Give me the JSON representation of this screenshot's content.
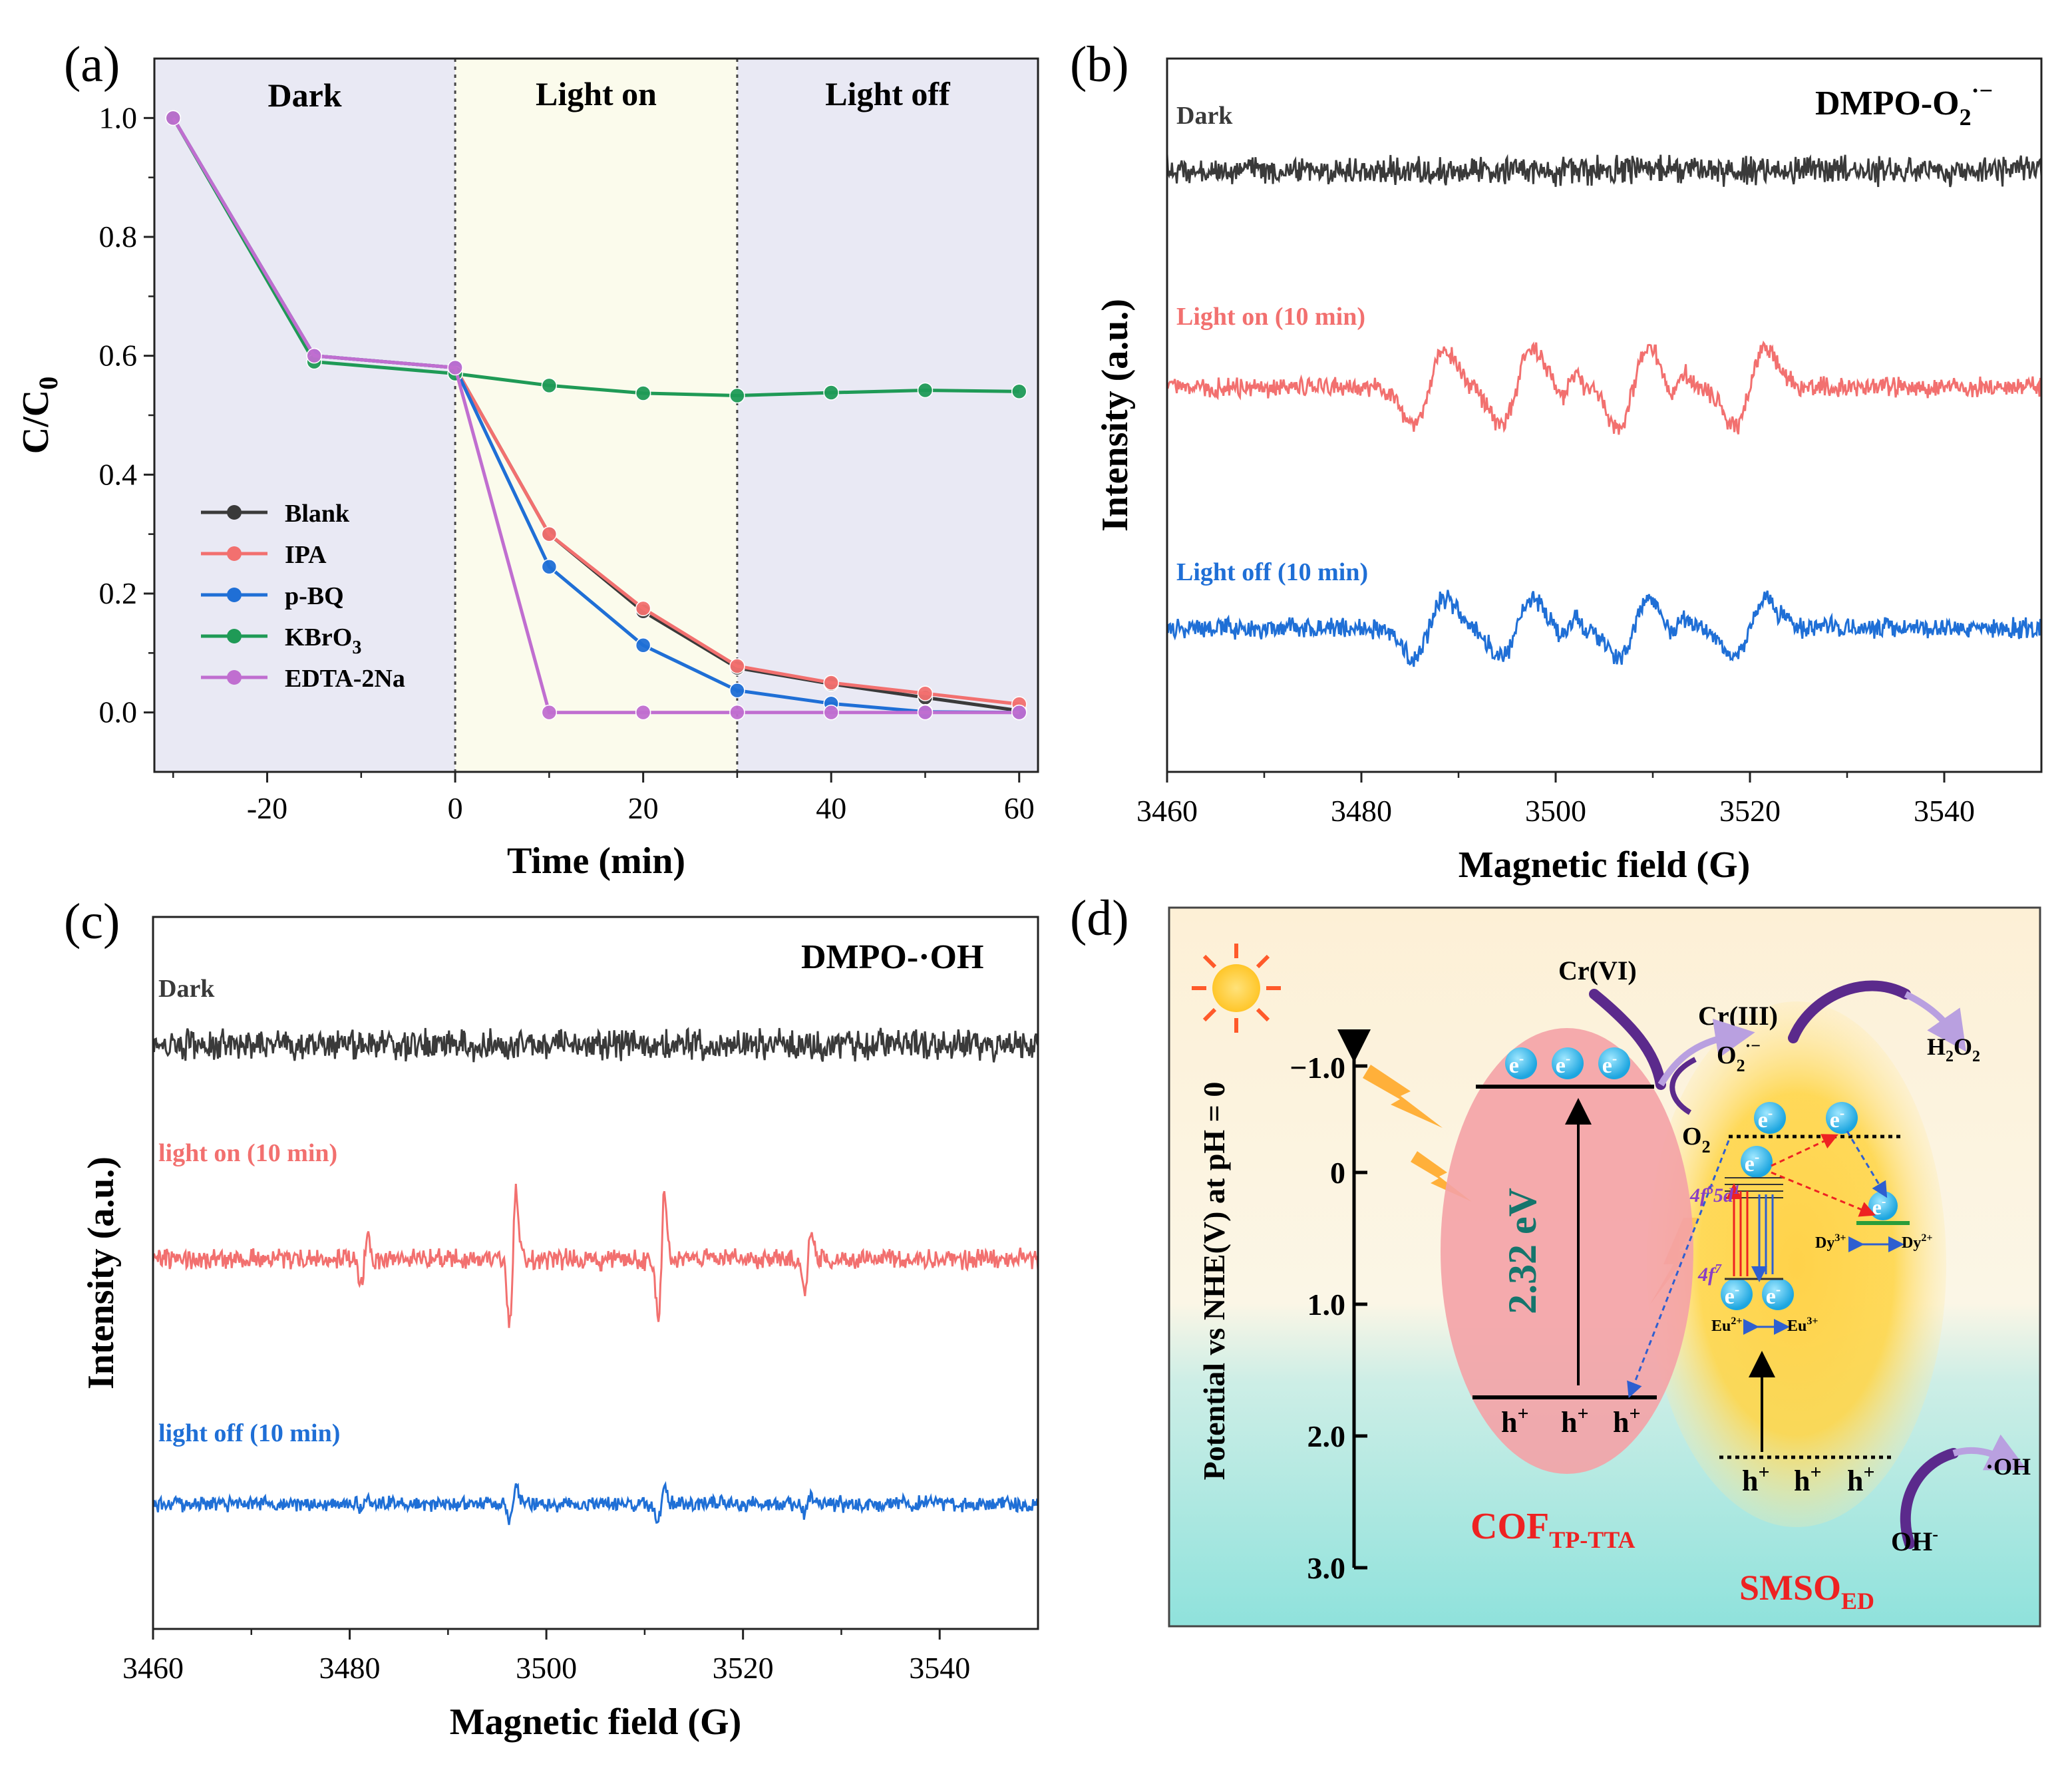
{
  "colors": {
    "black": "#3a3a3a",
    "red": "#f2706f",
    "blue": "#1f6fd6",
    "green": "#1f9a56",
    "purple": "#c06ed0",
    "dark_bg": "#e9e9f4",
    "light_bg": "#fbfbec",
    "accent_red": "#ee2222",
    "teal": "#15756c"
  },
  "panels": {
    "a": {
      "label": "(a)",
      "regions": [
        "Dark",
        "Light on",
        "Light off"
      ]
    },
    "b": {
      "label": "(b)",
      "title": "DMPO-O",
      "title_sub": "2",
      "title_sup": "·−",
      "traces": [
        "Dark",
        "Light on (10 min)",
        "Light off (10 min)"
      ]
    },
    "c": {
      "label": "(c)",
      "title": "DMPO-·OH",
      "traces": [
        "Dark",
        "light on (10 min)",
        "light off (10 min)"
      ]
    },
    "d": {
      "label": "(d)",
      "ylabel": "Potential vs NHE(V) at pH = 0",
      "yticks": [
        "−1.0",
        "0",
        "1.0",
        "2.0",
        "3.0"
      ],
      "electron": "e",
      "electron_sup": "-",
      "hole": "h",
      "hole_sup": "+",
      "bandgap": "2.32 eV",
      "cr6": "Cr(VI)",
      "cr3": "Cr(III)",
      "o2": "O",
      "o2_sub": "2",
      "o2rad": "O",
      "o2rad_sub": "2",
      "o2rad_sup": "·−",
      "h2o2": "H",
      "h2o2_sub1": "2",
      "h2o2_mid": "O",
      "h2o2_sub2": "2",
      "oh_rad": "·OH",
      "oh_minus": "OH",
      "oh_minus_sup": "-",
      "cof": "COF",
      "cof_sub": "TP-TTA",
      "smso": "SMSO",
      "smso_sub": "ED",
      "f6d": "4f",
      "f6d_sup": "6",
      "f6d_rest": "5d",
      "f6d_sup2": "1",
      "f7": "4f",
      "f7_sup": "7",
      "dy3": "Dy",
      "dy3_sup": "3+",
      "dy2": "Dy",
      "dy2_sup": "2+",
      "eu2": "Eu",
      "eu2_sup": "2+",
      "eu3": "Eu",
      "eu3_sup": "3+"
    }
  },
  "chart_data": [
    {
      "panel": "a",
      "type": "line",
      "xlabel": "Time (min)",
      "ylabel": "C/C",
      "ylabel_sub": "0",
      "xlim": [
        -32,
        62
      ],
      "ylim": [
        -0.1,
        1.1
      ],
      "xticks": [
        -20,
        0,
        20,
        40,
        60
      ],
      "xtick_labels": [
        "-20",
        "0",
        "20",
        "40",
        "60"
      ],
      "yticks": [
        0.0,
        0.2,
        0.4,
        0.6,
        0.8,
        1.0
      ],
      "ytick_labels": [
        "0.0",
        "0.2",
        "0.4",
        "0.6",
        "0.8",
        "1.0"
      ],
      "legend_position": "bottom-left",
      "x": [
        -30,
        -15,
        0,
        10,
        20,
        30,
        40,
        50,
        60
      ],
      "series": [
        {
          "name": "Blank",
          "legend": "Blank",
          "legend_sub": "",
          "color": "#3a3a3a",
          "values": [
            1.0,
            0.6,
            0.58,
            0.3,
            0.17,
            0.075,
            0.048,
            0.025,
            0.003
          ]
        },
        {
          "name": "IPA",
          "legend": "IPA",
          "legend_sub": "",
          "color": "#f2706f",
          "values": [
            1.0,
            0.6,
            0.58,
            0.3,
            0.175,
            0.078,
            0.05,
            0.032,
            0.014
          ]
        },
        {
          "name": "p-BQ",
          "legend": "p-BQ",
          "legend_sub": "",
          "color": "#1f6fd6",
          "values": [
            1.0,
            0.6,
            0.58,
            0.245,
            0.113,
            0.037,
            0.015,
            0.001,
            0.0
          ]
        },
        {
          "name": "KBrO3",
          "legend": "KBrO",
          "legend_sub": "3",
          "color": "#1f9a56",
          "values": [
            1.0,
            0.59,
            0.57,
            0.55,
            0.537,
            0.533,
            0.538,
            0.542,
            0.54
          ]
        },
        {
          "name": "EDTA-2Na",
          "legend": "EDTA-2Na",
          "legend_sub": "",
          "color": "#c06ed0",
          "values": [
            1.0,
            0.6,
            0.58,
            0.0,
            0.0,
            0.0,
            0.0,
            0.0,
            0.0
          ]
        }
      ]
    },
    {
      "panel": "b",
      "type": "line",
      "xlabel": "Magnetic field (G)",
      "ylabel": "Intensity (a.u.)",
      "xlim": [
        3460,
        3550
      ],
      "xticks": [
        3460,
        3480,
        3500,
        3520,
        3540
      ],
      "xtick_labels": [
        "3460",
        "3480",
        "3500",
        "3520",
        "3540"
      ],
      "series": [
        {
          "name": "Dark",
          "color": "#3a3a3a",
          "peaks": []
        },
        {
          "name": "Light on (10 min)",
          "color": "#f2706f",
          "peaks": [
            3487,
            3490.5,
            3496,
            3499.5,
            3501.5,
            3503,
            3508,
            3511,
            3513,
            3515,
            3520,
            3524.5
          ]
        },
        {
          "name": "Light off (10 min)",
          "color": "#1f6fd6",
          "peaks": [
            3487,
            3490.5,
            3496,
            3499.5,
            3501.5,
            3503,
            3508,
            3511,
            3513,
            3515,
            3520,
            3524.5
          ]
        }
      ]
    },
    {
      "panel": "c",
      "type": "line",
      "xlabel": "Magnetic field (G)",
      "ylabel": "Intensity (a.u.)",
      "xlim": [
        3460,
        3550
      ],
      "xticks": [
        3460,
        3480,
        3500,
        3520,
        3540
      ],
      "xtick_labels": [
        "3460",
        "3480",
        "3500",
        "3520",
        "3540"
      ],
      "series": [
        {
          "name": "Dark",
          "color": "#3a3a3a",
          "peaks": []
        },
        {
          "name": "light on (10 min)",
          "color": "#f2706f",
          "peaks": [
            3481.5,
            3496.5,
            3511.5,
            3526.5
          ]
        },
        {
          "name": "light off (10 min)",
          "color": "#1f6fd6",
          "peaks": [
            3481.5,
            3496.5,
            3511.5,
            3526.5
          ]
        }
      ]
    }
  ]
}
